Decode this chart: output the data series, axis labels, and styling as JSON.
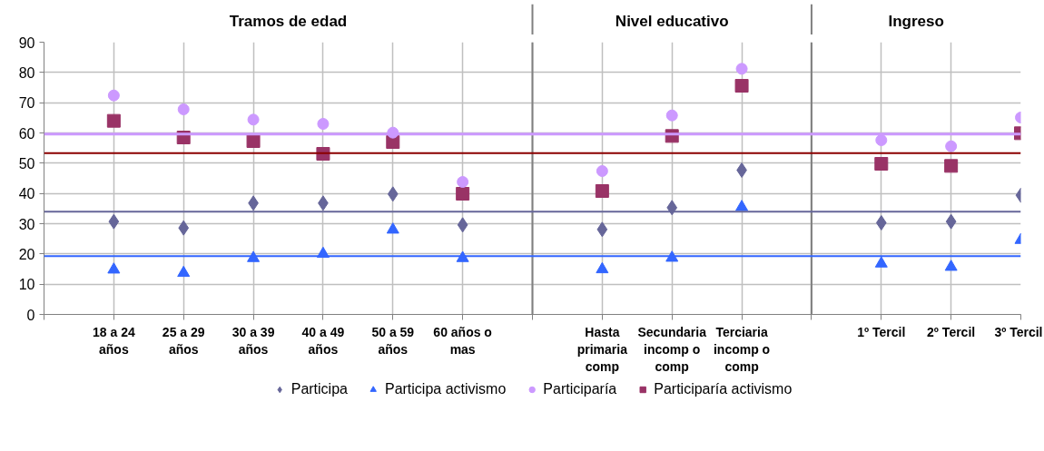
{
  "chart_data": {
    "type": "scatter",
    "categories": [
      null,
      "18 a 24 años",
      "25 a 29 años",
      "30 a 39 años",
      "40 a 49 años",
      "50 a 59 años",
      "60 años o mas",
      null,
      "Hasta primaria comp",
      "Secundaria incomp o comp",
      "Terciaria incomp o comp",
      null,
      "1º Tercil",
      "2º Tercil",
      "3º Tercil"
    ],
    "ylim": [
      0,
      90
    ],
    "yticks": [
      0,
      10,
      20,
      30,
      40,
      50,
      60,
      70,
      80,
      90
    ],
    "grid": true,
    "legend": "bottom",
    "series": [
      {
        "name": "Participa",
        "color": "#666699",
        "marker": "diamond",
        "values": [
          null,
          30.7,
          28.6,
          36.8,
          36.8,
          39.8,
          29.6,
          null,
          28.1,
          35.3,
          47.7,
          null,
          30.3,
          30.7,
          39.4
        ]
      },
      {
        "name": "Participa activismo",
        "color": "#3366ff",
        "marker": "triangle",
        "values": [
          null,
          14.8,
          13.7,
          18.6,
          20.0,
          28.0,
          18.6,
          null,
          14.9,
          18.7,
          35.5,
          null,
          16.8,
          15.7,
          24.6
        ]
      },
      {
        "name": "Participaría",
        "color": "#cc99ff",
        "marker": "circle",
        "values": [
          null,
          72.4,
          67.8,
          64.4,
          63.0,
          60.1,
          43.8,
          null,
          47.4,
          65.8,
          81.2,
          null,
          57.6,
          55.6,
          65.1
        ]
      },
      {
        "name": "Participaría activismo",
        "color": "#993366",
        "marker": "square",
        "values": [
          null,
          64.0,
          58.5,
          57.3,
          53.1,
          57.0,
          39.9,
          null,
          40.8,
          59.0,
          75.6,
          null,
          49.8,
          49.1,
          59.9
        ]
      }
    ],
    "ref_lines": [
      {
        "axis": "y",
        "value": 59.6,
        "label": null,
        "color": "#cc99ff"
      },
      {
        "axis": "y",
        "value": 53.3,
        "label": null,
        "color": "#8b0000"
      },
      {
        "axis": "y",
        "value": 34.0,
        "label": null,
        "color": "#666699"
      },
      {
        "axis": "y",
        "value": 19.3,
        "label": null,
        "color": "#3366ff"
      }
    ],
    "annotations": [
      "Tramos de edad",
      "Nivel educativo",
      "Ingreso"
    ]
  }
}
